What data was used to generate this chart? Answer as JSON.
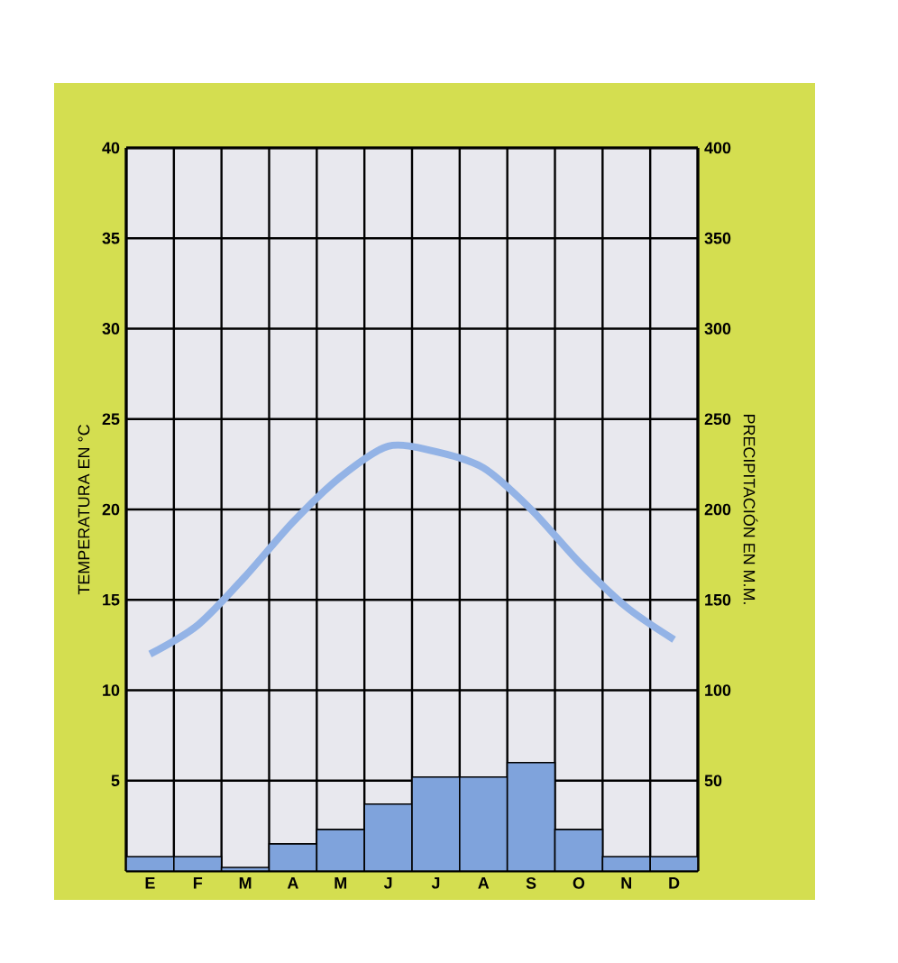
{
  "chart_data": {
    "type": "bar",
    "ylabel": "TEMPERATURA EN °C",
    "y2label": "PRECIPITACIÓN EN M.M.",
    "categories": [
      "E",
      "F",
      "M",
      "A",
      "M",
      "J",
      "J",
      "A",
      "S",
      "O",
      "N",
      "D"
    ],
    "series": [
      {
        "axis": "y2",
        "color": "#7fa3dc",
        "values": [
          8,
          8,
          2,
          15,
          23,
          37,
          52,
          52,
          60,
          23,
          8,
          8
        ]
      },
      {
        "type": "line",
        "axis": "y",
        "color": "#93b3e6",
        "values": [
          12.0,
          13.6,
          16.3,
          19.3,
          21.8,
          23.5,
          23.2,
          22.3,
          20.0,
          17.1,
          14.6,
          12.8
        ]
      }
    ],
    "ylim": [
      0,
      40
    ],
    "yticks": [
      5,
      10,
      15,
      20,
      25,
      30,
      35,
      40
    ],
    "y2lim": [
      0,
      400
    ],
    "y2ticks": [
      50,
      100,
      150,
      200,
      250,
      300,
      350,
      400
    ],
    "grid": true
  }
}
